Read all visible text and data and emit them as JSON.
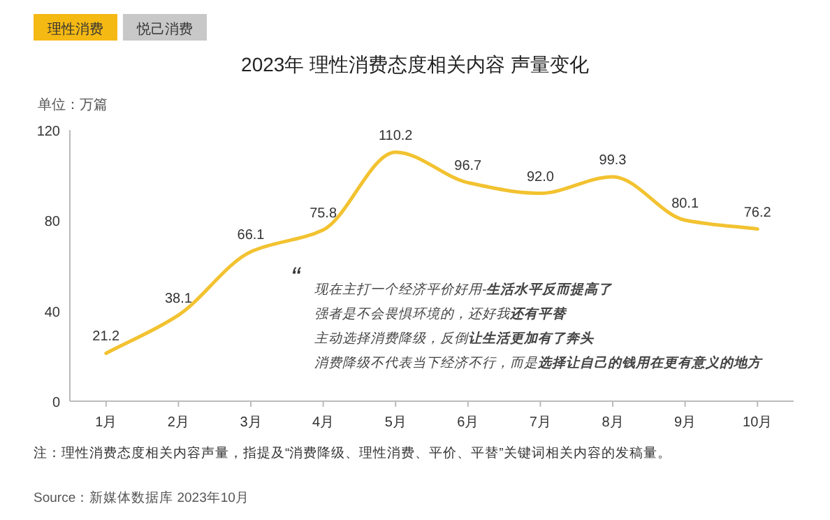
{
  "chart_data": {
    "type": "line",
    "title": "2023年 理性消费态度相关内容 声量变化",
    "ylabel": "单位：万篇",
    "categories": [
      "1月",
      "2月",
      "3月",
      "4月",
      "5月",
      "6月",
      "7月",
      "8月",
      "9月",
      "10月"
    ],
    "values": [
      21.2,
      38.1,
      66.1,
      75.8,
      110.2,
      96.7,
      92.0,
      99.3,
      80.1,
      76.2
    ],
    "value_labels": [
      "21.2",
      "38.1",
      "66.1",
      "75.8",
      "110.2",
      "96.7",
      "92.0",
      "99.3",
      "80.1",
      "76.2"
    ],
    "color": "#f2c230",
    "ylim": [
      0,
      120
    ],
    "yticks": [
      0,
      40,
      80,
      120
    ],
    "grid": false,
    "marker": "none",
    "line_style": "solid",
    "annotations": [
      "理性消费",
      "悦己消费",
      "“",
      "现在主打一个经济平价好用-**生活水平反而提高了**",
      "强者是不会畏惧环境的，还好我**还有平替**",
      "主动选择消费降级，反倒**让生活更加有了奔头**",
      "消费降级不代表当下经济不行，而是**选择让自己的钱用在更有意义的地方**",
      "注：理性消费态度相关内容声量，指提及“消费降级、理性消费、平价、平替”关键词相关内容的发稿量。",
      "Source：新媒体数据库 2023年10月"
    ]
  }
}
